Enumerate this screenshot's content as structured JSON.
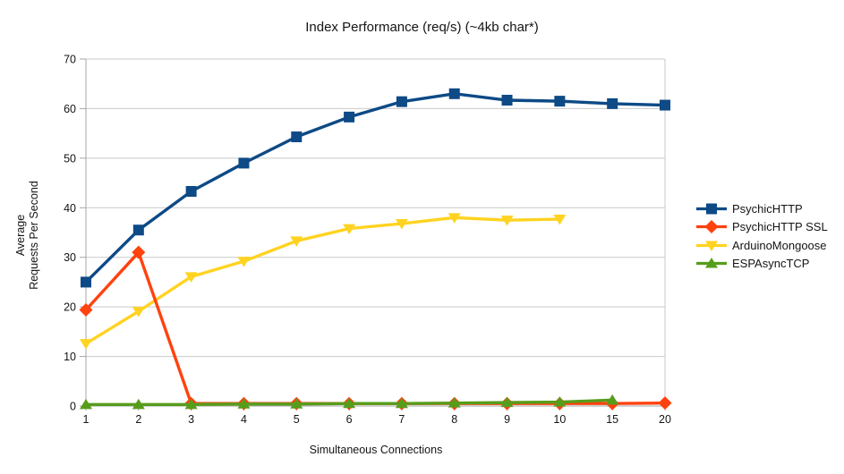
{
  "chart_data": {
    "type": "line",
    "title": "Index Performance (req/s) (~4kb char*)",
    "xlabel": "Simultaneous Connections",
    "ylabel": "Average Requests Per Second",
    "ylabel_lines": [
      "Average",
      "Requests Per Second"
    ],
    "categories": [
      "1",
      "2",
      "3",
      "4",
      "5",
      "6",
      "7",
      "8",
      "9",
      "10",
      "15",
      "20"
    ],
    "y_ticks": [
      0,
      10,
      20,
      30,
      40,
      50,
      60,
      70
    ],
    "ylim": [
      0,
      70
    ],
    "grid": "horizontal",
    "legend_position": "right",
    "colors": {
      "gridline": "#c9c9c9",
      "axis": "#a6a6a6",
      "text": "#141414"
    },
    "series": [
      {
        "name": "PsychicHTTP",
        "color": "#0d4a86",
        "marker": "square",
        "values": [
          25.0,
          35.5,
          43.3,
          49.0,
          54.3,
          58.3,
          61.4,
          63.0,
          61.7,
          61.5,
          61.0,
          60.7
        ]
      },
      {
        "name": "PsychicHTTP SSL",
        "color": "#ff420e",
        "marker": "diamond",
        "values": [
          19.4,
          31.0,
          0.5,
          0.5,
          0.5,
          0.5,
          0.5,
          0.5,
          0.5,
          0.5,
          0.5,
          0.6
        ]
      },
      {
        "name": "ArduinoMongoose",
        "color": "#ffd320",
        "marker": "triangle-down",
        "values": [
          12.6,
          19.1,
          26.1,
          29.2,
          33.3,
          35.8,
          36.8,
          38.0,
          37.5,
          37.7,
          null,
          null
        ]
      },
      {
        "name": "ESPAsyncTCP",
        "color": "#579d1c",
        "marker": "triangle-up",
        "values": [
          0.3,
          0.3,
          0.3,
          0.4,
          0.4,
          0.5,
          0.5,
          0.6,
          0.7,
          0.8,
          1.2,
          null
        ]
      }
    ]
  }
}
